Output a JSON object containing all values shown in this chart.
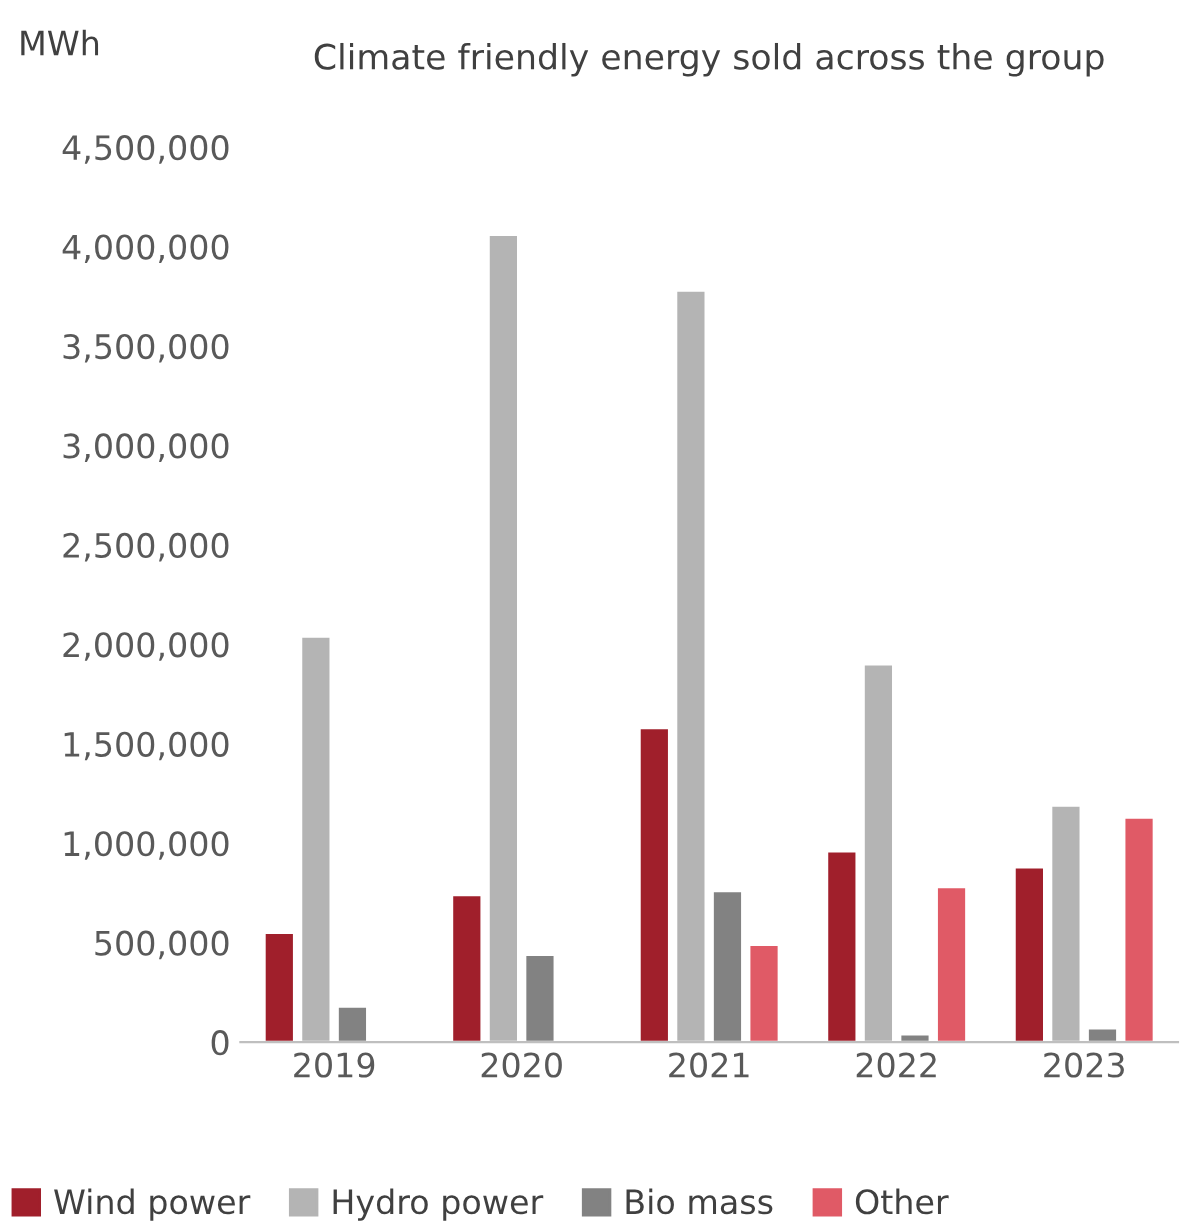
{
  "chart_data": {
    "type": "bar",
    "title": "Climate friendly energy sold across the group",
    "ylabel": "MWh",
    "categories": [
      "2019",
      "2020",
      "2021",
      "2022",
      "2023"
    ],
    "series": [
      {
        "name": "Wind power",
        "color": "#a01f2b",
        "values": [
          550000,
          740000,
          1580000,
          960000,
          880000
        ]
      },
      {
        "name": "Hydro power",
        "color": "#b4b4b4",
        "values": [
          2040000,
          4060000,
          3780000,
          1900000,
          1190000
        ]
      },
      {
        "name": "Bio mass",
        "color": "#828282",
        "values": [
          180000,
          440000,
          760000,
          40000,
          70000
        ]
      },
      {
        "name": "Other",
        "color": "#e05a66",
        "values": [
          null,
          null,
          490000,
          780000,
          1130000
        ]
      }
    ],
    "ylim": [
      0,
      4500000
    ],
    "yticks": [
      {
        "value": 0,
        "label": "0"
      },
      {
        "value": 500000,
        "label": "500,000"
      },
      {
        "value": 1000000,
        "label": "1,000,000"
      },
      {
        "value": 1500000,
        "label": "1,500,000"
      },
      {
        "value": 2000000,
        "label": "2,000,000"
      },
      {
        "value": 2500000,
        "label": "2,500,000"
      },
      {
        "value": 3000000,
        "label": "3,000,000"
      },
      {
        "value": 3500000,
        "label": "3,500,000"
      },
      {
        "value": 4000000,
        "label": "4,000,000"
      },
      {
        "value": 4500000,
        "label": "4,500,000"
      }
    ],
    "grid": false,
    "legend": "bottom"
  }
}
